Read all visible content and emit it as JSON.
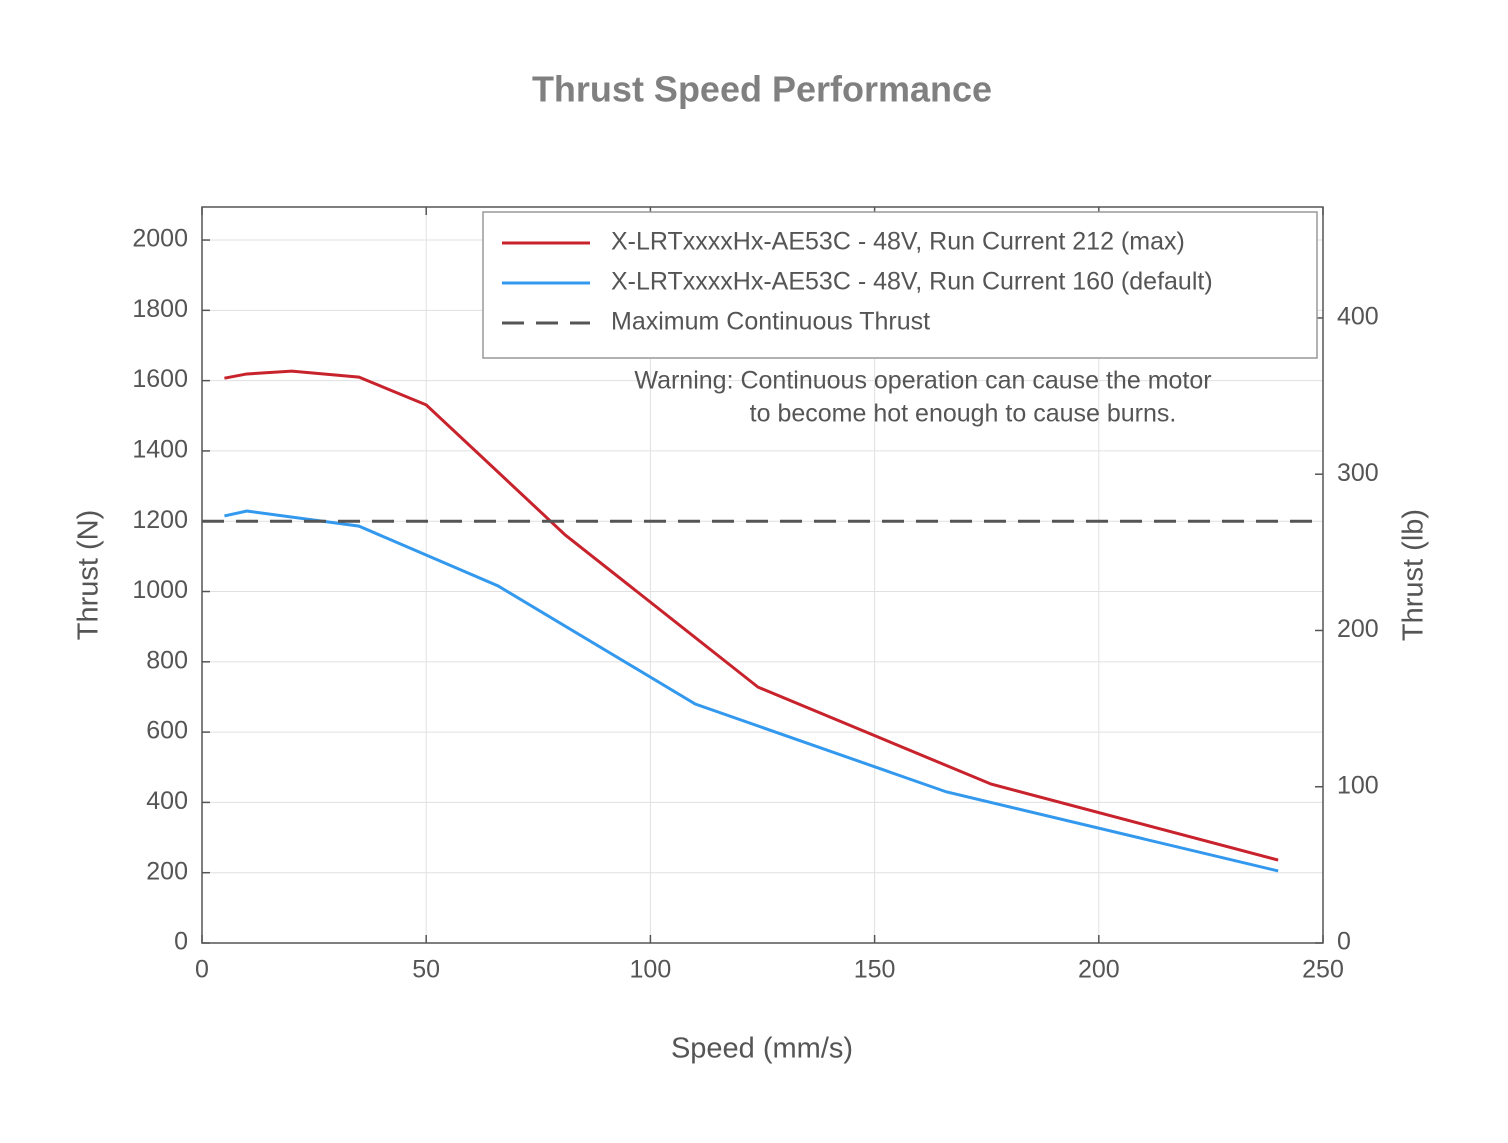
{
  "chart_data": {
    "type": "line",
    "title": "Thrust Speed Performance",
    "xlabel": "Speed (mm/s)",
    "ylabel": "Thrust (N)",
    "y2label": "Thrust (lb)",
    "annotation": [
      "Warning: Continuous operation can cause the motor",
      "to become hot enough to cause burns."
    ],
    "series": [
      {
        "name": "X-LRTxxxxHx-AE53C - 48V, Run Current 212 (max)",
        "color": "#c8232c",
        "x": [
          5,
          10,
          20,
          35,
          50,
          81,
          124,
          176,
          240
        ],
        "values": [
          1607,
          1619,
          1627,
          1610,
          1531,
          1161,
          728,
          452,
          236
        ]
      },
      {
        "name": "X-LRTxxxxHx-AE53C - 48V, Run Current 160 (default)",
        "color": "#3399ee",
        "x": [
          5,
          10,
          35,
          66,
          110,
          166,
          240
        ],
        "values": [
          1215,
          1229,
          1186,
          1016,
          680,
          430,
          205
        ]
      }
    ],
    "reference_line": {
      "name": "Maximum Continuous Thrust",
      "value": 1200,
      "color": "#555555"
    },
    "xlim": [
      0,
      250
    ],
    "xticks": [
      0,
      50,
      100,
      150,
      200,
      250
    ],
    "ylim": [
      0,
      2094
    ],
    "yticks": [
      0,
      200,
      400,
      600,
      800,
      1000,
      1200,
      1400,
      1600,
      1800,
      2000
    ],
    "y2lim": [
      0,
      471
    ],
    "y2ticks": [
      0,
      100,
      200,
      300,
      400
    ],
    "grid": true
  }
}
